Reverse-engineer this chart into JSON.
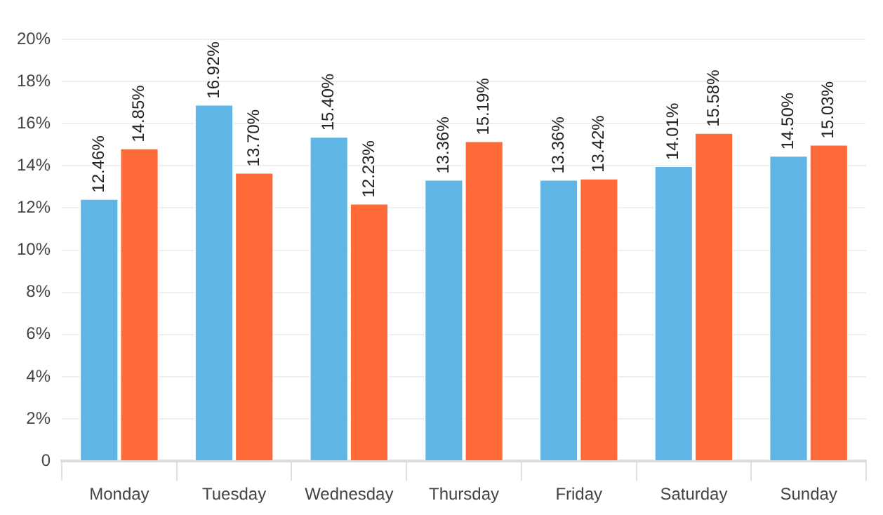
{
  "chart_data": {
    "type": "bar",
    "categories": [
      "Monday",
      "Tuesday",
      "Wednesday",
      "Thursday",
      "Friday",
      "Saturday",
      "Sunday"
    ],
    "series": [
      {
        "color": "#5fb6e4",
        "values": [
          12.46,
          16.92,
          15.4,
          13.36,
          13.36,
          14.01,
          14.5
        ],
        "value_labels": [
          "12.46%",
          "16.92%",
          "15.40%",
          "13.36%",
          "13.36%",
          "14.01%",
          "14.50%"
        ]
      },
      {
        "color": "#ff6b38",
        "values": [
          14.85,
          13.7,
          12.23,
          15.19,
          13.42,
          15.58,
          15.03
        ],
        "value_labels": [
          "14.85%",
          "13.70%",
          "12.23%",
          "15.19%",
          "13.42%",
          "15.58%",
          "15.03%"
        ]
      }
    ],
    "ylim": [
      0,
      20
    ],
    "yticks": [
      0,
      {
        "value": 2,
        "label": "2%"
      },
      {
        "value": 4,
        "label": "4%"
      },
      {
        "value": 6,
        "label": "6%"
      },
      {
        "value": 8,
        "label": "8%"
      },
      {
        "value": 10,
        "label": "10%"
      },
      {
        "value": 12,
        "label": "12%"
      },
      {
        "value": 14,
        "label": "14%"
      },
      {
        "value": 16,
        "label": "16%"
      },
      {
        "value": 18,
        "label": "18%"
      },
      {
        "value": 20,
        "label": "20%"
      }
    ],
    "grid": "y",
    "legend": false
  }
}
